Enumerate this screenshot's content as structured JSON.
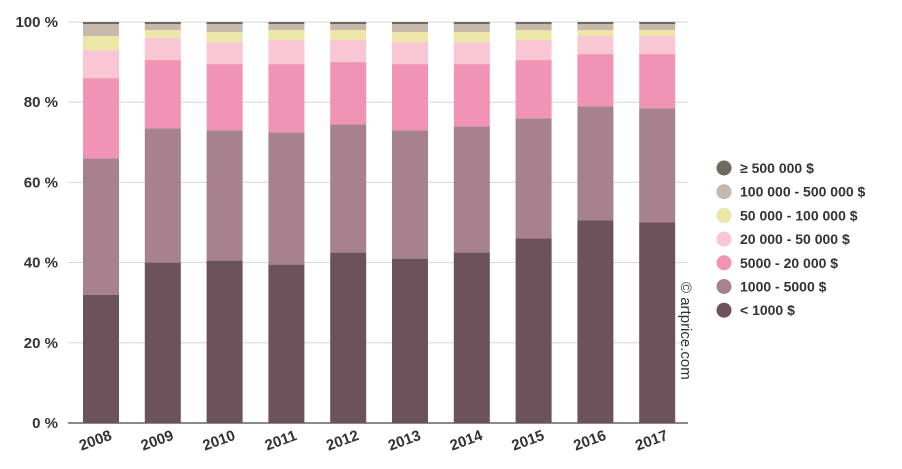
{
  "chart_data": {
    "type": "bar",
    "stacked": true,
    "normalized": true,
    "categories": [
      "2008",
      "2009",
      "2010",
      "2011",
      "2012",
      "2013",
      "2014",
      "2015",
      "2016",
      "2017"
    ],
    "y_tick_labels": [
      "0 %",
      "20 %",
      "40 %",
      "60 %",
      "80 %",
      "100 %"
    ],
    "ylim": [
      0,
      100
    ],
    "grid": true,
    "legend_position": "right",
    "series": [
      {
        "name": "< 1000 $",
        "color": "#6b525b",
        "values": [
          32,
          40,
          40.5,
          39.5,
          42.5,
          41,
          42.5,
          46,
          50.5,
          50
        ]
      },
      {
        "name": "1000 - 5000 $",
        "color": "#a8818e",
        "values": [
          34,
          33.5,
          32.5,
          33,
          32,
          32,
          31.5,
          30,
          28.5,
          28.5
        ]
      },
      {
        "name": "5000 - 20 000 $",
        "color": "#f093b4",
        "values": [
          20,
          17,
          16.5,
          17,
          15.5,
          16.5,
          15.5,
          14.5,
          13,
          13.5
        ]
      },
      {
        "name": "20 000 - 50 000 $",
        "color": "#f8c7d3",
        "values": [
          7,
          5.5,
          5.5,
          6,
          5.5,
          5.5,
          5.5,
          5,
          4.5,
          4.5
        ]
      },
      {
        "name": "50 000 - 100 000 $",
        "color": "#ece6a7",
        "values": [
          3.5,
          2,
          2.5,
          2.5,
          2.5,
          2.5,
          2.5,
          2.5,
          1.5,
          1.5
        ]
      },
      {
        "name": "100 000 - 500 000 $",
        "color": "#c7b8ac",
        "values": [
          3,
          1.5,
          2,
          1.5,
          1.5,
          2,
          2,
          1.5,
          1.5,
          1.5
        ]
      },
      {
        "name": "≥ 500 000 $",
        "color": "#6e6a5e",
        "values": [
          0.5,
          0.5,
          0.5,
          0.5,
          0.5,
          0.5,
          0.5,
          0.5,
          0.5,
          0.5
        ]
      }
    ],
    "legend_order": [
      6,
      5,
      4,
      3,
      2,
      1,
      0
    ]
  },
  "credit": "© artprice.com"
}
